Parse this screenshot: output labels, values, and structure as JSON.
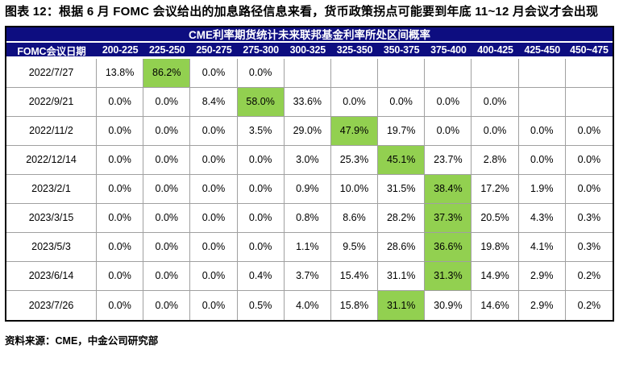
{
  "title": "图表 12：根据 6 月 FOMC 会议给出的加息路径信息来看，货币政策拐点可能要到年底 11~12 月会议才会出现",
  "source": "资料来源：CME，中金公司研究部",
  "colors": {
    "header_bg": "#0D0D80",
    "header_text": "#FFFFFF",
    "highlight": "#92D050",
    "grid_line": "#A0A0A0",
    "table_border": "#000000"
  },
  "chart_data": {
    "type": "table",
    "title": "CME利率期货统计未来联邦基金利率所处区间概率",
    "row_header": "FOMC会议日期",
    "columns": [
      "200-225",
      "225-250",
      "250-275",
      "275-300",
      "300-325",
      "325-350",
      "350-375",
      "375-400",
      "400-425",
      "425-450",
      "450~475"
    ],
    "unit": "%",
    "highlight_color": "#92D050",
    "rows": [
      {
        "date": "2022/7/27",
        "values": [
          13.8,
          86.2,
          0.0,
          0.0,
          null,
          null,
          null,
          null,
          null,
          null,
          null
        ],
        "highlight_index": 1
      },
      {
        "date": "2022/9/21",
        "values": [
          0.0,
          0.0,
          8.4,
          58.0,
          33.6,
          0.0,
          0.0,
          0.0,
          0.0,
          null,
          null
        ],
        "highlight_index": 3
      },
      {
        "date": "2022/11/2",
        "values": [
          0.0,
          0.0,
          0.0,
          3.5,
          29.0,
          47.9,
          19.7,
          0.0,
          0.0,
          0.0,
          0.0
        ],
        "highlight_index": 5
      },
      {
        "date": "2022/12/14",
        "values": [
          0.0,
          0.0,
          0.0,
          0.0,
          3.0,
          25.3,
          45.1,
          23.7,
          2.8,
          0.0,
          0.0
        ],
        "highlight_index": 6
      },
      {
        "date": "2023/2/1",
        "values": [
          0.0,
          0.0,
          0.0,
          0.0,
          0.9,
          10.0,
          31.5,
          38.4,
          17.2,
          1.9,
          0.0
        ],
        "highlight_index": 7
      },
      {
        "date": "2023/3/15",
        "values": [
          0.0,
          0.0,
          0.0,
          0.0,
          0.8,
          8.6,
          28.2,
          37.3,
          20.5,
          4.3,
          0.3
        ],
        "highlight_index": 7
      },
      {
        "date": "2023/5/3",
        "values": [
          0.0,
          0.0,
          0.0,
          0.0,
          1.1,
          9.5,
          28.6,
          36.6,
          19.8,
          4.1,
          0.3
        ],
        "highlight_index": 7
      },
      {
        "date": "2023/6/14",
        "values": [
          0.0,
          0.0,
          0.0,
          0.4,
          3.7,
          15.4,
          31.1,
          31.3,
          14.9,
          2.9,
          0.2
        ],
        "highlight_index": 7
      },
      {
        "date": "2023/7/26",
        "values": [
          0.0,
          0.0,
          0.0,
          0.5,
          4.0,
          15.8,
          31.1,
          30.9,
          14.6,
          2.9,
          0.2
        ],
        "highlight_index": 6
      }
    ]
  }
}
